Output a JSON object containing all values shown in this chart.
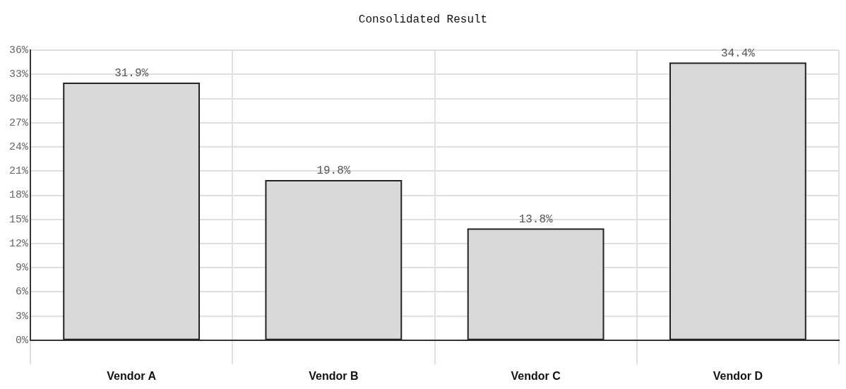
{
  "chart_data": {
    "type": "bar",
    "title": "Consolidated Result",
    "categories": [
      "Vendor A",
      "Vendor B",
      "Vendor C",
      "Vendor D"
    ],
    "values": [
      31.9,
      19.8,
      13.8,
      34.4
    ],
    "value_labels": [
      "31.9%",
      "19.8%",
      "13.8%",
      "34.4%"
    ],
    "color": "#d9d9d9",
    "ylim": [
      0,
      36
    ],
    "yticks": [
      {
        "value": 0,
        "label": "0%"
      },
      {
        "value": 3,
        "label": "3%"
      },
      {
        "value": 6,
        "label": "6%"
      },
      {
        "value": 9,
        "label": "9%"
      },
      {
        "value": 12,
        "label": "12%"
      },
      {
        "value": 15,
        "label": "15%"
      },
      {
        "value": 18,
        "label": "18%"
      },
      {
        "value": 21,
        "label": "21%"
      },
      {
        "value": 24,
        "label": "24%"
      },
      {
        "value": 27,
        "label": "27%"
      },
      {
        "value": 30,
        "label": "30%"
      },
      {
        "value": 33,
        "label": "33%"
      },
      {
        "value": 36,
        "label": "36%"
      }
    ],
    "grid": true,
    "legend": false
  }
}
